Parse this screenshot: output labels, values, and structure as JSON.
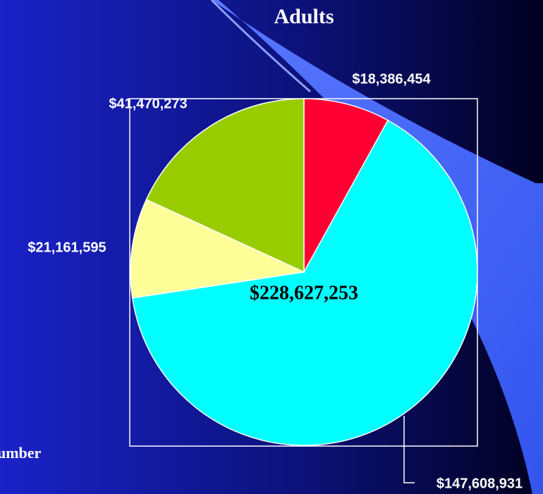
{
  "chart_data": {
    "type": "pie",
    "title": "Adults",
    "categories": [
      null,
      null,
      null,
      null
    ],
    "values": [
      18386454,
      147608931,
      21161595,
      41470273
    ],
    "value_labels": [
      "$18,386,454",
      "$147,608,931",
      "$21,161,595",
      "$41,470,273"
    ],
    "colors": [
      "#ff0033",
      "#00ffff",
      "#ffff99",
      "#99cc00"
    ],
    "annotations": [
      "$228,627,253",
      "umber"
    ]
  }
}
